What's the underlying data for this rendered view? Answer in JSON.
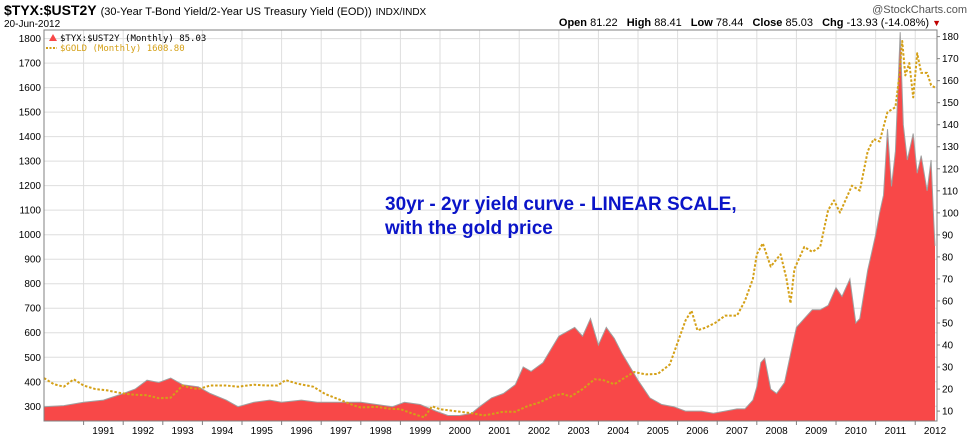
{
  "header": {
    "title": "$TYX:$UST2Y",
    "description": "(30-Year T-Bond Yield/2-Year US Treasury Yield (EOD))",
    "source": "INDX/INDX",
    "date": "20-Jun-2012",
    "brand": "@StockCharts.com",
    "open_label": "Open",
    "open": "81.22",
    "high_label": "High",
    "high": "88.41",
    "low_label": "Low",
    "low": "78.44",
    "close_label": "Close",
    "close": "85.03",
    "chg_label": "Chg",
    "chg": "-13.93 (-14.08%)",
    "down_color": "#c00000"
  },
  "legend": {
    "item1": "$TYX:$UST2Y (Monthly) 85.03",
    "item2": "$GOLD (Monthly) 1608.80"
  },
  "annotation": {
    "line1": "30yr - 2yr yield curve - LINEAR SCALE,",
    "line2": "with the gold price"
  },
  "colors": {
    "ratio_fill": "#f84848",
    "ratio_edge": "#a0a0a0",
    "gold_line": "#d4a017",
    "annotation": "#0a14c8",
    "grid": "#dedede"
  },
  "chart_data": {
    "type": "area",
    "x_tick_labels": [
      "1991",
      "1992",
      "1993",
      "1994",
      "1995",
      "1996",
      "1997",
      "1998",
      "1999",
      "2000",
      "2001",
      "2002",
      "2003",
      "2004",
      "2005",
      "2006",
      "2007",
      "2008",
      "2009",
      "2010",
      "2011",
      "2012"
    ],
    "y_left_ticks": [
      300,
      400,
      500,
      600,
      700,
      800,
      900,
      1000,
      1100,
      1200,
      1300,
      1400,
      1500,
      1600,
      1700,
      1800
    ],
    "y_right_ticks": [
      10,
      20,
      30,
      40,
      50,
      60,
      70,
      80,
      90,
      100,
      110,
      120,
      130,
      140,
      150,
      160,
      170,
      180
    ],
    "ylim_left": [
      240,
      1835
    ],
    "ylim_right": [
      5.5,
      183
    ],
    "xlim": [
      1990.0,
      2012.55
    ],
    "grid": true,
    "series": [
      {
        "name": "$TYX:$UST2Y (Monthly)",
        "axis": "right",
        "style": "area",
        "points": [
          [
            1990.0,
            12
          ],
          [
            1990.5,
            12.5
          ],
          [
            1991.0,
            14
          ],
          [
            1991.5,
            15
          ],
          [
            1992.0,
            18
          ],
          [
            1992.3,
            20
          ],
          [
            1992.6,
            24
          ],
          [
            1992.9,
            23
          ],
          [
            1993.2,
            25
          ],
          [
            1993.5,
            22
          ],
          [
            1993.9,
            21
          ],
          [
            1994.2,
            18
          ],
          [
            1994.6,
            15
          ],
          [
            1994.9,
            12
          ],
          [
            1995.3,
            14
          ],
          [
            1995.7,
            15
          ],
          [
            1996.0,
            14
          ],
          [
            1996.5,
            15
          ],
          [
            1996.9,
            14
          ],
          [
            1997.3,
            14
          ],
          [
            1997.7,
            14
          ],
          [
            1998.0,
            14
          ],
          [
            1998.4,
            13
          ],
          [
            1998.8,
            12
          ],
          [
            1999.1,
            14
          ],
          [
            1999.5,
            13
          ],
          [
            1999.9,
            10
          ],
          [
            2000.2,
            8
          ],
          [
            2000.5,
            8
          ],
          [
            2000.8,
            9
          ],
          [
            2001.0,
            12
          ],
          [
            2001.3,
            16
          ],
          [
            2001.6,
            18
          ],
          [
            2001.9,
            22
          ],
          [
            2002.1,
            30
          ],
          [
            2002.3,
            28
          ],
          [
            2002.6,
            32
          ],
          [
            2002.8,
            38
          ],
          [
            2003.0,
            44
          ],
          [
            2003.2,
            46
          ],
          [
            2003.4,
            48
          ],
          [
            2003.6,
            44
          ],
          [
            2003.8,
            52
          ],
          [
            2004.0,
            40
          ],
          [
            2004.2,
            48
          ],
          [
            2004.4,
            43
          ],
          [
            2004.6,
            36
          ],
          [
            2004.8,
            30
          ],
          [
            2005.0,
            24
          ],
          [
            2005.3,
            16
          ],
          [
            2005.6,
            13
          ],
          [
            2005.9,
            12
          ],
          [
            2006.2,
            10
          ],
          [
            2006.6,
            10
          ],
          [
            2006.9,
            9
          ],
          [
            2007.2,
            10
          ],
          [
            2007.5,
            11
          ],
          [
            2007.7,
            11
          ],
          [
            2007.9,
            15
          ],
          [
            2008.0,
            21
          ],
          [
            2008.1,
            32
          ],
          [
            2008.2,
            34
          ],
          [
            2008.35,
            20
          ],
          [
            2008.5,
            18
          ],
          [
            2008.7,
            23
          ],
          [
            2008.9,
            40
          ],
          [
            2009.0,
            48
          ],
          [
            2009.2,
            52
          ],
          [
            2009.4,
            56
          ],
          [
            2009.6,
            56
          ],
          [
            2009.8,
            58
          ],
          [
            2010.0,
            66
          ],
          [
            2010.15,
            62
          ],
          [
            2010.35,
            70
          ],
          [
            2010.5,
            50
          ],
          [
            2010.6,
            52
          ],
          [
            2010.8,
            74
          ],
          [
            2010.9,
            82
          ],
          [
            2011.0,
            90
          ],
          [
            2011.1,
            100
          ],
          [
            2011.2,
            108
          ],
          [
            2011.3,
            138
          ],
          [
            2011.4,
            112
          ],
          [
            2011.5,
            128
          ],
          [
            2011.62,
            182
          ],
          [
            2011.7,
            140
          ],
          [
            2011.8,
            124
          ],
          [
            2011.95,
            136
          ],
          [
            2012.05,
            118
          ],
          [
            2012.15,
            126
          ],
          [
            2012.3,
            110
          ],
          [
            2012.4,
            124
          ],
          [
            2012.47,
            96
          ],
          [
            2012.5,
            85
          ]
        ]
      },
      {
        "name": "$GOLD (Monthly)",
        "axis": "left",
        "style": "dotted-line",
        "points": [
          [
            1990.0,
            415
          ],
          [
            1990.25,
            390
          ],
          [
            1990.5,
            380
          ],
          [
            1990.75,
            410
          ],
          [
            1991.0,
            385
          ],
          [
            1991.3,
            370
          ],
          [
            1991.6,
            365
          ],
          [
            1991.9,
            355
          ],
          [
            1992.2,
            348
          ],
          [
            1992.6,
            345
          ],
          [
            1992.9,
            333
          ],
          [
            1993.2,
            335
          ],
          [
            1993.5,
            385
          ],
          [
            1993.7,
            375
          ],
          [
            1993.9,
            370
          ],
          [
            1994.2,
            385
          ],
          [
            1994.6,
            385
          ],
          [
            1994.9,
            380
          ],
          [
            1995.3,
            388
          ],
          [
            1995.6,
            385
          ],
          [
            1995.9,
            385
          ],
          [
            1996.1,
            407
          ],
          [
            1996.4,
            392
          ],
          [
            1996.8,
            380
          ],
          [
            1997.1,
            350
          ],
          [
            1997.5,
            325
          ],
          [
            1997.8,
            305
          ],
          [
            1998.0,
            295
          ],
          [
            1998.4,
            298
          ],
          [
            1998.7,
            290
          ],
          [
            1999.0,
            288
          ],
          [
            1999.4,
            265
          ],
          [
            1999.6,
            255
          ],
          [
            1999.8,
            300
          ],
          [
            2000.0,
            288
          ],
          [
            2000.4,
            280
          ],
          [
            2000.8,
            272
          ],
          [
            2001.1,
            263
          ],
          [
            2001.3,
            268
          ],
          [
            2001.6,
            278
          ],
          [
            2001.9,
            278
          ],
          [
            2002.2,
            300
          ],
          [
            2002.5,
            315
          ],
          [
            2002.9,
            345
          ],
          [
            2003.1,
            350
          ],
          [
            2003.3,
            340
          ],
          [
            2003.6,
            370
          ],
          [
            2003.9,
            410
          ],
          [
            2004.1,
            408
          ],
          [
            2004.4,
            390
          ],
          [
            2004.7,
            420
          ],
          [
            2004.9,
            440
          ],
          [
            2005.2,
            430
          ],
          [
            2005.5,
            432
          ],
          [
            2005.8,
            470
          ],
          [
            2006.0,
            560
          ],
          [
            2006.2,
            650
          ],
          [
            2006.35,
            690
          ],
          [
            2006.5,
            610
          ],
          [
            2006.7,
            620
          ],
          [
            2006.95,
            640
          ],
          [
            2007.2,
            670
          ],
          [
            2007.5,
            670
          ],
          [
            2007.7,
            730
          ],
          [
            2007.9,
            820
          ],
          [
            2008.0,
            920
          ],
          [
            2008.15,
            965
          ],
          [
            2008.35,
            870
          ],
          [
            2008.6,
            920
          ],
          [
            2008.75,
            820
          ],
          [
            2008.85,
            720
          ],
          [
            2008.95,
            860
          ],
          [
            2009.2,
            950
          ],
          [
            2009.4,
            930
          ],
          [
            2009.6,
            950
          ],
          [
            2009.8,
            1100
          ],
          [
            2009.95,
            1140
          ],
          [
            2010.1,
            1090
          ],
          [
            2010.4,
            1200
          ],
          [
            2010.6,
            1180
          ],
          [
            2010.8,
            1340
          ],
          [
            2010.95,
            1390
          ],
          [
            2011.1,
            1380
          ],
          [
            2011.3,
            1500
          ],
          [
            2011.5,
            1520
          ],
          [
            2011.6,
            1650
          ],
          [
            2011.67,
            1790
          ],
          [
            2011.75,
            1650
          ],
          [
            2011.85,
            1700
          ],
          [
            2011.95,
            1560
          ],
          [
            2012.05,
            1740
          ],
          [
            2012.15,
            1660
          ],
          [
            2012.3,
            1660
          ],
          [
            2012.4,
            1610
          ],
          [
            2012.5,
            1600
          ]
        ]
      }
    ]
  }
}
